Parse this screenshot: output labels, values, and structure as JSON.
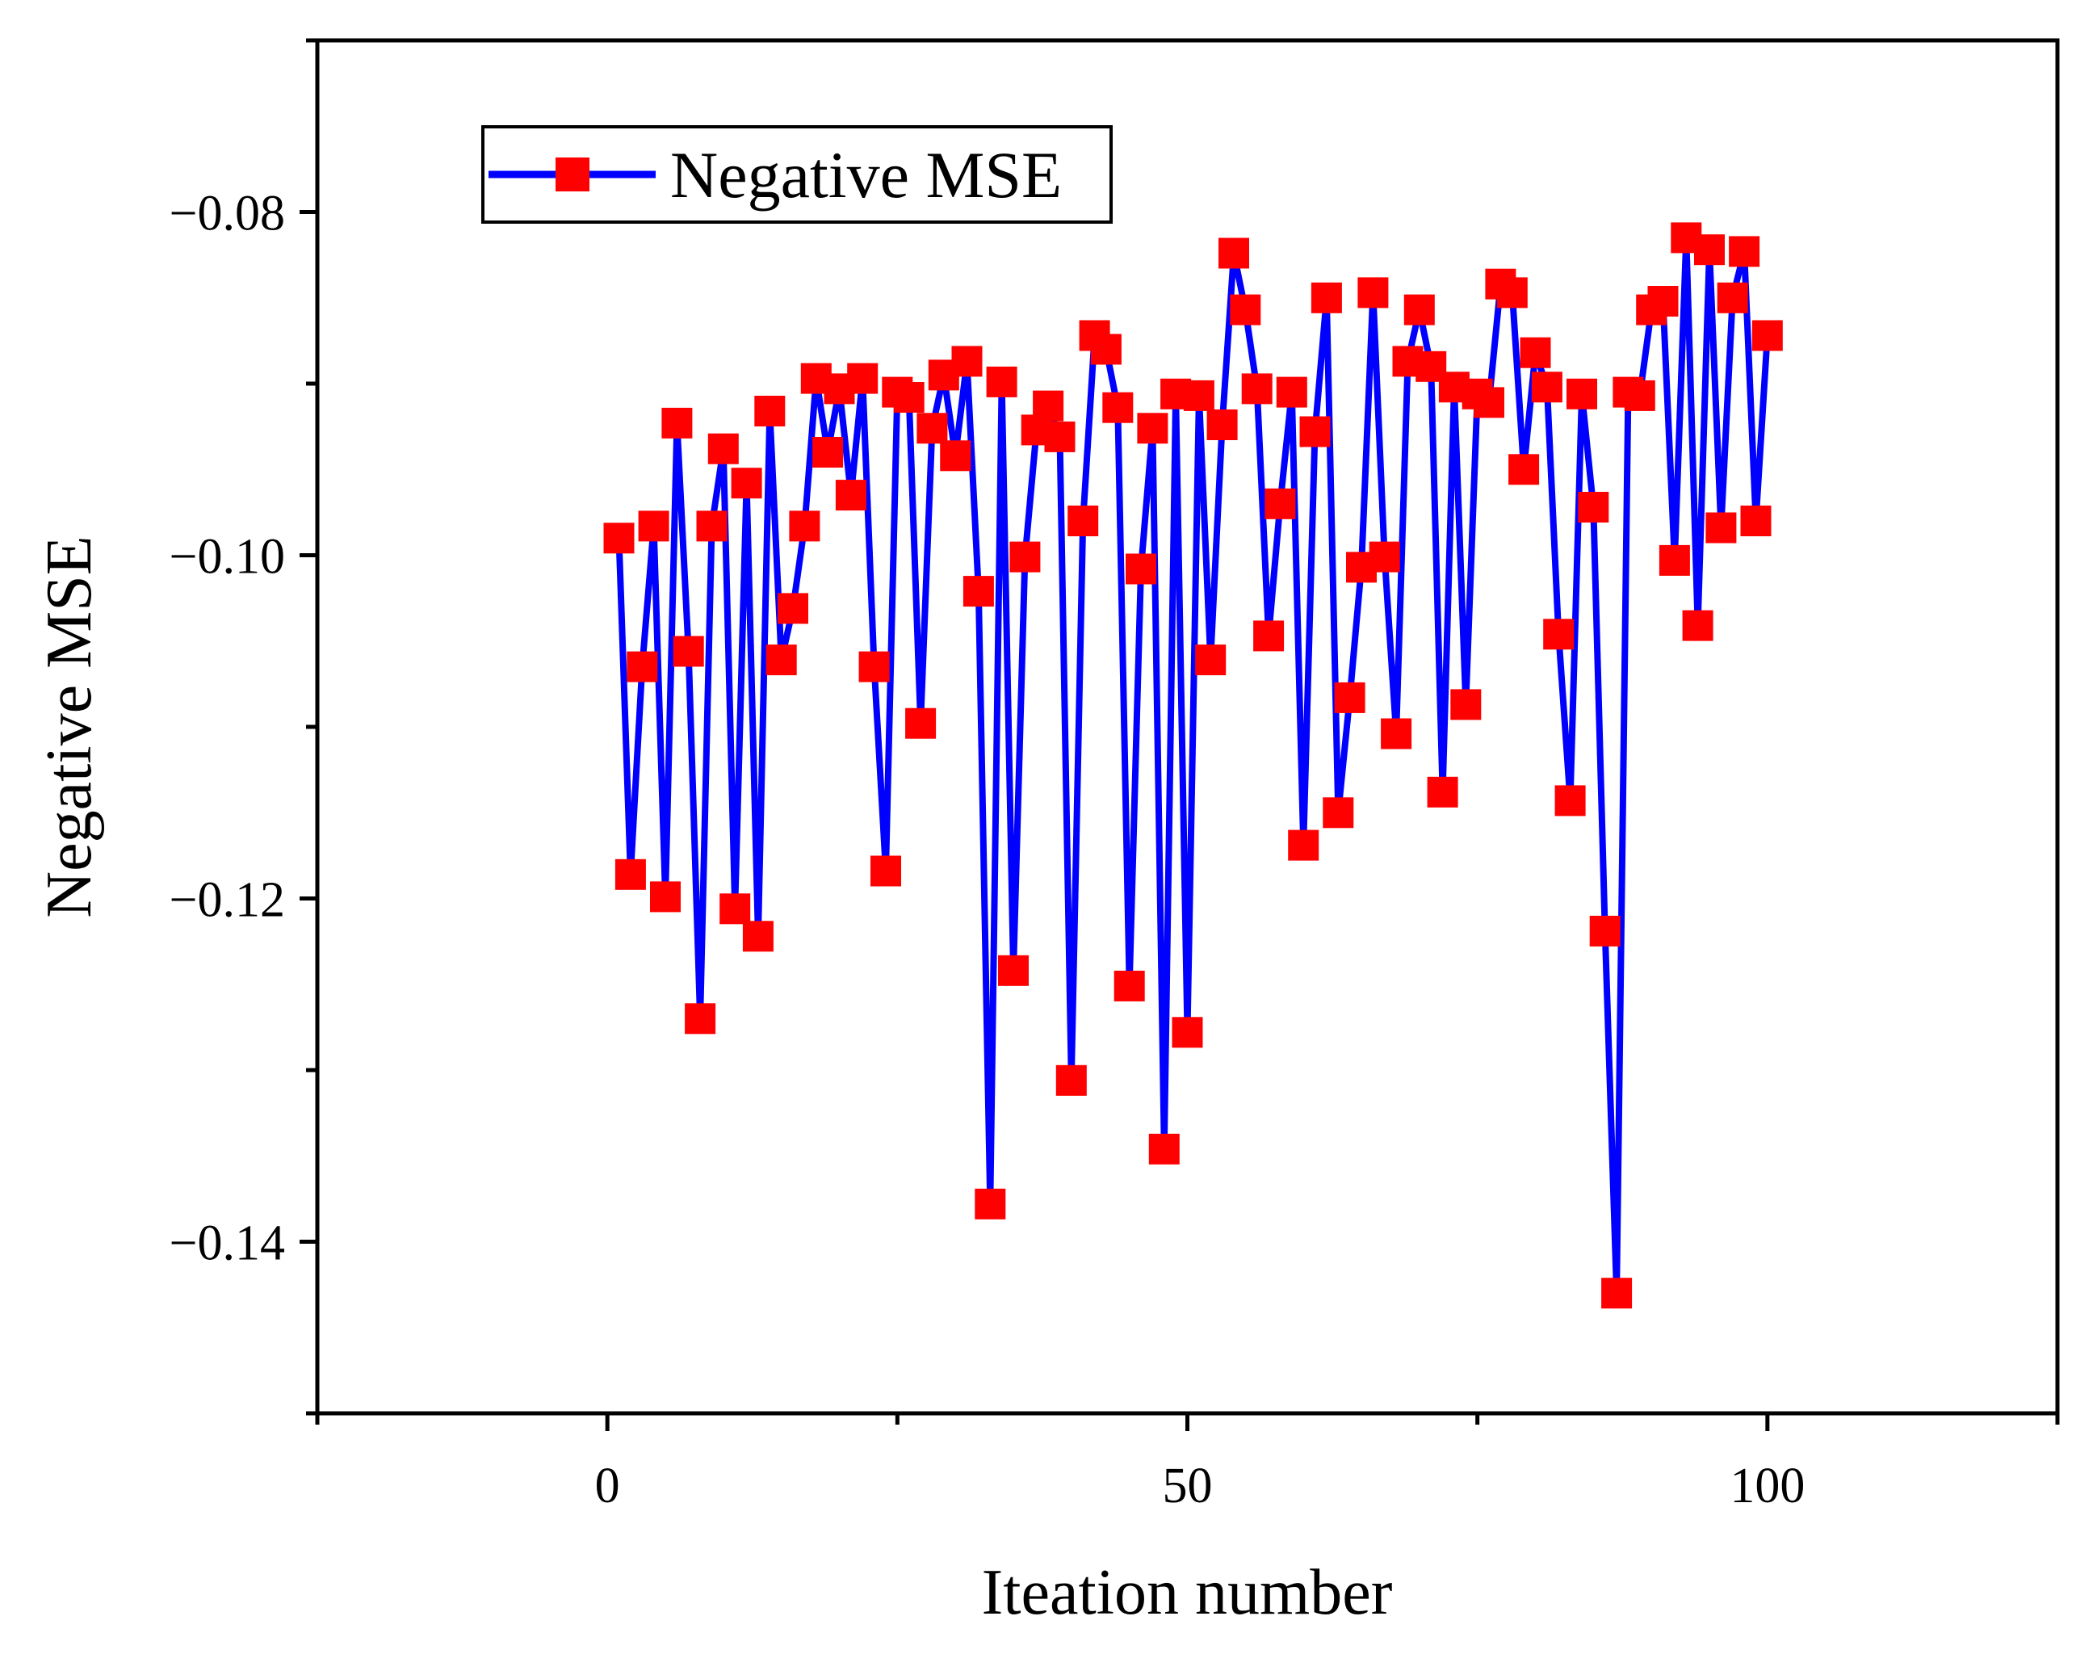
{
  "chart_data": {
    "type": "line",
    "title": "",
    "xlabel": "Iteation number",
    "ylabel": "Negative MSE",
    "xlim": [
      -25,
      125
    ],
    "ylim": [
      -0.15,
      -0.07
    ],
    "xticks": [
      0,
      50,
      100
    ],
    "xtick_labels": [
      "0",
      "50",
      "100"
    ],
    "yticks": [
      -0.08,
      -0.1,
      -0.12,
      -0.14
    ],
    "ytick_labels": [
      "−0.08",
      "−0.10",
      "−0.12",
      "−0.14"
    ],
    "grid": false,
    "legend_position": "top-left",
    "series": [
      {
        "name": "Negative MSE",
        "line_color": "#0000ff",
        "marker_color": "#ff0000",
        "marker": "square",
        "x": [
          1,
          2,
          3,
          4,
          5,
          6,
          7,
          8,
          9,
          10,
          11,
          12,
          13,
          14,
          15,
          16,
          17,
          18,
          19,
          20,
          21,
          22,
          23,
          24,
          25,
          26,
          27,
          28,
          29,
          30,
          31,
          32,
          33,
          34,
          35,
          36,
          37,
          38,
          39,
          40,
          41,
          42,
          43,
          44,
          45,
          46,
          47,
          48,
          49,
          50,
          51,
          52,
          53,
          54,
          55,
          56,
          57,
          58,
          59,
          60,
          61,
          62,
          63,
          64,
          65,
          66,
          67,
          68,
          69,
          70,
          71,
          72,
          73,
          74,
          75,
          76,
          77,
          78,
          79,
          80,
          81,
          82,
          83,
          84,
          85,
          86,
          87,
          88,
          89,
          90,
          91,
          92,
          93,
          94,
          95,
          96,
          97,
          98,
          99,
          100
        ],
        "values": [
          -0.099,
          -0.1186,
          -0.1065,
          -0.0983,
          -0.1199,
          -0.0923,
          -0.1056,
          -0.127,
          -0.0983,
          -0.0938,
          -0.1206,
          -0.0958,
          -0.1222,
          -0.0916,
          -0.1061,
          -0.1031,
          -0.0983,
          -0.0897,
          -0.094,
          -0.0903,
          -0.0965,
          -0.0897,
          -0.1065,
          -0.1184,
          -0.0905,
          -0.0908,
          -0.1098,
          -0.0926,
          -0.0895,
          -0.0942,
          -0.0887,
          -0.1021,
          -0.1378,
          -0.0899,
          -0.1242,
          -0.1001,
          -0.0927,
          -0.0913,
          -0.0931,
          -0.1306,
          -0.098,
          -0.0872,
          -0.088,
          -0.0914,
          -0.1251,
          -0.1008,
          -0.0926,
          -0.1346,
          -0.0906,
          -0.1278,
          -0.0907,
          -0.1061,
          -0.0924,
          -0.0824,
          -0.0857,
          -0.0903,
          -0.1047,
          -0.097,
          -0.0905,
          -0.1169,
          -0.0928,
          -0.085,
          -0.115,
          -0.1083,
          -0.1007,
          -0.0847,
          -0.1001,
          -0.1104,
          -0.0887,
          -0.0857,
          -0.089,
          -0.1138,
          -0.0902,
          -0.1087,
          -0.0906,
          -0.0911,
          -0.0842,
          -0.0847,
          -0.095,
          -0.0882,
          -0.0902,
          -0.1046,
          -0.1143,
          -0.0906,
          -0.0972,
          -0.1219,
          -0.143,
          -0.0905,
          -0.0907,
          -0.0857,
          -0.0852,
          -0.1003,
          -0.0815,
          -0.1041,
          -0.0822,
          -0.0984,
          -0.085,
          -0.0823,
          -0.098,
          -0.0872
        ]
      }
    ]
  }
}
